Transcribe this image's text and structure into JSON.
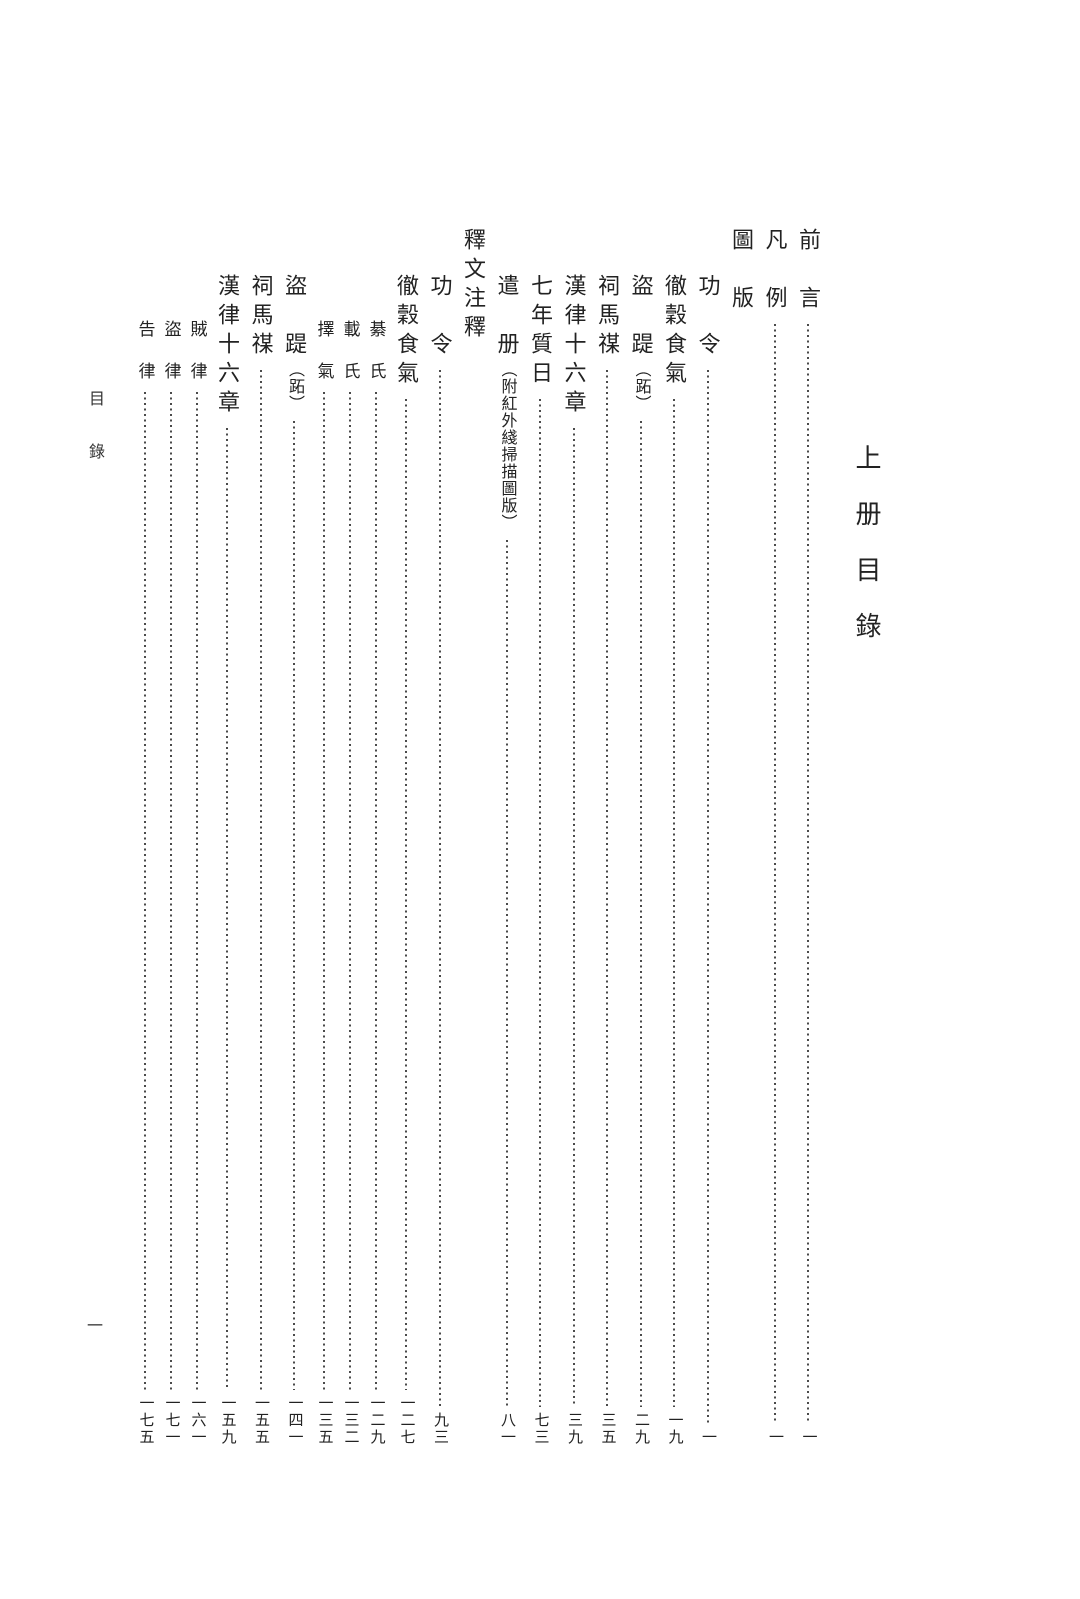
{
  "volume_title": "上　册　目　錄",
  "margin": {
    "label": "目錄",
    "folio": "一"
  },
  "colors": {
    "background": "#ffffff",
    "text": "#222222",
    "leader_dots": "#4a4a4a"
  },
  "toc": [
    {
      "label": "前　言",
      "page": "一",
      "type": "header"
    },
    {
      "label": "凡　例",
      "page": "一",
      "type": "header"
    },
    {
      "label": "圖　版",
      "page": "",
      "type": "section"
    },
    {
      "label": "功　令",
      "page": "一",
      "type": "entry"
    },
    {
      "label": "徹穀食氣",
      "page": "一九",
      "type": "entry"
    },
    {
      "label": "盜　踶（跖）",
      "page": "二九",
      "type": "entry"
    },
    {
      "label": "祠馬禖",
      "page": "三五",
      "type": "entry"
    },
    {
      "label": "漢律十六章",
      "page": "三九",
      "type": "entry"
    },
    {
      "label": "七年質日",
      "page": "七三",
      "type": "entry"
    },
    {
      "label": "遣　册（附紅外綫掃描圖版）",
      "page": "八一",
      "type": "entry"
    },
    {
      "label": "釋文注釋",
      "page": "",
      "type": "section"
    },
    {
      "label": "功　令",
      "page": "九三",
      "type": "entry"
    },
    {
      "label": "徹穀食氣",
      "page": "一二七",
      "type": "entry"
    },
    {
      "label": "綦　氏",
      "page": "一二九",
      "type": "sub"
    },
    {
      "label": "載　氏",
      "page": "一三二",
      "type": "sub"
    },
    {
      "label": "擇　氣",
      "page": "一三五",
      "type": "sub"
    },
    {
      "label": "盜　踶（跖）",
      "page": "一四一",
      "type": "entry"
    },
    {
      "label": "祠馬禖",
      "page": "一五五",
      "type": "entry"
    },
    {
      "label": "漢律十六章",
      "page": "一五九",
      "type": "entry"
    },
    {
      "label": "賊　律",
      "page": "一六一",
      "type": "sub"
    },
    {
      "label": "盜　律",
      "page": "一七一",
      "type": "sub"
    },
    {
      "label": "告　律",
      "page": "一七五",
      "type": "sub"
    }
  ]
}
